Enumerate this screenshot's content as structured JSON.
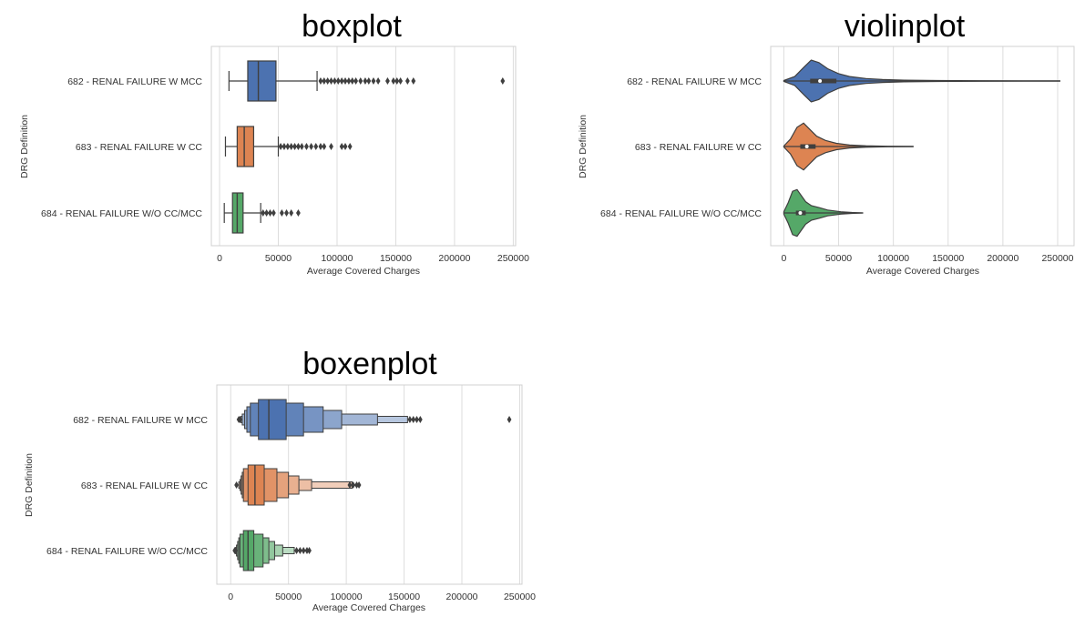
{
  "chart_data": [
    {
      "type": "boxplot",
      "title": "boxplot",
      "xlabel": "Average Covered Charges",
      "ylabel": "DRG Definition",
      "xlim": [
        -7000,
        252000
      ],
      "xticks": [
        0,
        50000,
        100000,
        150000,
        200000,
        250000
      ],
      "xtick_labels": [
        "0",
        "50000",
        "100000",
        "150000",
        "200000",
        "250000"
      ],
      "grid": "vertical",
      "categories": [
        "682 - RENAL FAILURE W MCC",
        "683 - RENAL FAILURE W CC",
        "684 - RENAL FAILURE W/O CC/MCC"
      ],
      "colors": [
        "#4c72b0",
        "#dd8452",
        "#55a868"
      ],
      "series": [
        {
          "whisker_low": 8000,
          "q1": 24000,
          "median": 33000,
          "q3": 48000,
          "whisker_high": 83000,
          "outliers": [
            86000,
            89000,
            92000,
            95000,
            98000,
            101000,
            104000,
            107000,
            110000,
            113000,
            116000,
            120000,
            124000,
            127000,
            131000,
            135000,
            143000,
            148000,
            151000,
            154000,
            160000,
            165000,
            241000
          ]
        },
        {
          "whisker_low": 5000,
          "q1": 15000,
          "median": 21000,
          "q3": 29000,
          "whisker_high": 50000,
          "outliers": [
            52000,
            55000,
            58000,
            61000,
            64000,
            67000,
            70000,
            74000,
            78000,
            82000,
            86000,
            89000,
            95000,
            104000,
            107000,
            111000
          ]
        },
        {
          "whisker_low": 4000,
          "q1": 11000,
          "median": 15000,
          "q3": 20000,
          "whisker_high": 35000,
          "outliers": [
            37000,
            40000,
            43000,
            46000,
            53000,
            57000,
            61000,
            67000
          ]
        }
      ]
    },
    {
      "type": "violinplot",
      "title": "violinplot",
      "xlabel": "Average Covered Charges",
      "ylabel": "DRG Definition",
      "xlim": [
        -12000,
        265000
      ],
      "xticks": [
        0,
        50000,
        100000,
        150000,
        200000,
        250000
      ],
      "xtick_labels": [
        "0",
        "50000",
        "100000",
        "150000",
        "200000",
        "250000"
      ],
      "grid": "vertical",
      "categories": [
        "682 - RENAL FAILURE W MCC",
        "683 - RENAL FAILURE W CC",
        "684 - RENAL FAILURE W/O CC/MCC"
      ],
      "colors": [
        "#4c72b0",
        "#dd8452",
        "#55a868"
      ],
      "series": [
        {
          "min": 0,
          "max": 252000,
          "q1": 24000,
          "median": 33000,
          "q3": 48000,
          "density_x": [
            0,
            10000,
            18000,
            25000,
            32000,
            40000,
            50000,
            60000,
            75000,
            90000,
            110000,
            140000,
            180000,
            220000,
            252000
          ],
          "density_w": [
            0.02,
            0.18,
            0.55,
            0.85,
            0.75,
            0.5,
            0.3,
            0.18,
            0.1,
            0.06,
            0.035,
            0.02,
            0.012,
            0.008,
            0.005
          ]
        },
        {
          "min": 0,
          "max": 118000,
          "q1": 15000,
          "median": 21000,
          "q3": 29000,
          "density_x": [
            0,
            6000,
            12000,
            18000,
            24000,
            30000,
            38000,
            48000,
            60000,
            75000,
            95000,
            118000
          ],
          "density_w": [
            0.02,
            0.3,
            0.78,
            0.95,
            0.68,
            0.42,
            0.25,
            0.13,
            0.06,
            0.03,
            0.01,
            0.005
          ]
        },
        {
          "min": 0,
          "max": 72000,
          "q1": 11000,
          "median": 15000,
          "q3": 20000,
          "density_x": [
            0,
            4000,
            8000,
            12000,
            16000,
            20000,
            25000,
            32000,
            40000,
            52000,
            62000,
            72000
          ],
          "density_w": [
            0.05,
            0.42,
            0.88,
            0.95,
            0.7,
            0.45,
            0.3,
            0.22,
            0.12,
            0.05,
            0.02,
            0.005
          ]
        }
      ]
    },
    {
      "type": "boxenplot",
      "title": "boxenplot",
      "xlabel": "Average Covered Charges",
      "ylabel": "DRG Definition",
      "xlim": [
        -12000,
        252000
      ],
      "xticks": [
        0,
        50000,
        100000,
        150000,
        200000,
        250000
      ],
      "xtick_labels": [
        "0",
        "50000",
        "100000",
        "150000",
        "200000",
        "250000"
      ],
      "grid": "vertical",
      "categories": [
        "682 - RENAL FAILURE W MCC",
        "683 - RENAL FAILURE W CC",
        "684 - RENAL FAILURE W/O CC/MCC"
      ],
      "colors": [
        "#4c72b0",
        "#dd8452",
        "#55a868"
      ],
      "series": [
        {
          "median": 33000,
          "boxes": [
            [
              24000,
              48000
            ],
            [
              17000,
              63000
            ],
            [
              14000,
              80000
            ],
            [
              12000,
              96000
            ],
            [
              10000,
              127000
            ],
            [
              9000,
              153000
            ]
          ],
          "outliers": [
            7000,
            8000,
            155000,
            158000,
            161000,
            164000,
            241000
          ]
        },
        {
          "median": 21000,
          "boxes": [
            [
              15000,
              29000
            ],
            [
              11000,
              40000
            ],
            [
              10000,
              50000
            ],
            [
              9000,
              59000
            ],
            [
              8000,
              70000
            ],
            [
              7000,
              105000
            ]
          ],
          "outliers": [
            5000,
            103000,
            106000,
            109000,
            111000
          ]
        },
        {
          "median": 15000,
          "boxes": [
            [
              11000,
              20000
            ],
            [
              8000,
              28000
            ],
            [
              7000,
              33000
            ],
            [
              6000,
              38000
            ],
            [
              5000,
              45000
            ],
            [
              4500,
              55000
            ]
          ],
          "outliers": [
            3500,
            4000,
            57000,
            60000,
            63000,
            66000,
            68000
          ]
        }
      ]
    }
  ]
}
